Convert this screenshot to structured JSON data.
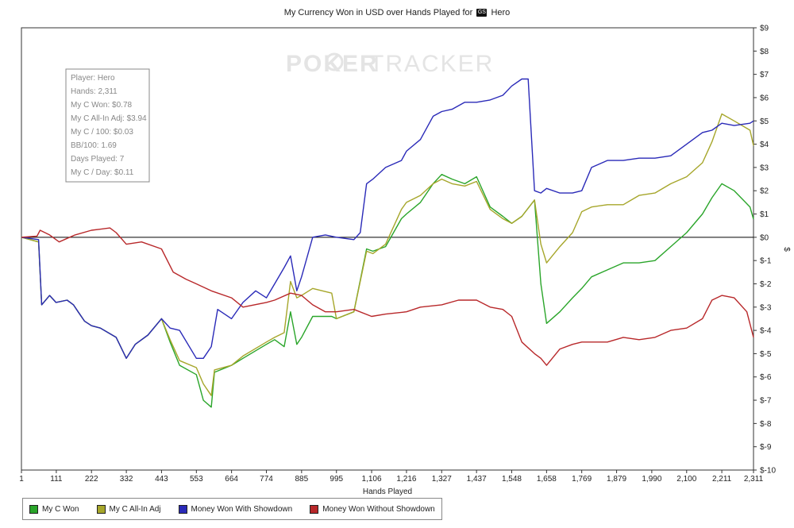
{
  "title": "My Currency Won in USD over Hands Played for",
  "title_player": "Hero",
  "hero_icon_text": "GS",
  "watermark": {
    "left": "POKER",
    "right": "TRACKER"
  },
  "stats_box": [
    "Player: Hero",
    "Hands: 2,311",
    "My C Won: $0.78",
    "My C All-In Adj: $3.94",
    "My C / 100: $0.03",
    "BB/100: 1.69",
    "Days Played: 7",
    "My C / Day: $0.11"
  ],
  "chart_data": {
    "type": "line",
    "title": "My Currency Won in USD over Hands Played for Hero",
    "xlabel": "Hands Played",
    "ylabel": "$",
    "xlim": [
      1,
      2311
    ],
    "ylim": [
      -10,
      9
    ],
    "x_ticks": [
      1,
      111,
      222,
      332,
      443,
      553,
      664,
      774,
      885,
      995,
      1106,
      1216,
      1327,
      1437,
      1548,
      1658,
      1769,
      1879,
      1990,
      2100,
      2211,
      2311
    ],
    "x_tick_labels": [
      "1",
      "111",
      "222",
      "332",
      "443",
      "553",
      "664",
      "774",
      "885",
      "995",
      "1,106",
      "1,216",
      "1,327",
      "1,437",
      "1,548",
      "1,658",
      "1,769",
      "1,879",
      "1,990",
      "2,100",
      "2,211",
      "2,311"
    ],
    "y_ticks": [
      9,
      8,
      7,
      6,
      5,
      4,
      3,
      2,
      1,
      0,
      -1,
      -2,
      -3,
      -4,
      -5,
      -6,
      -7,
      -8,
      -9,
      -10
    ],
    "y_tick_labels": [
      "$9",
      "$8",
      "$7",
      "$6",
      "$5",
      "$4",
      "$3",
      "$2",
      "$1",
      "$0",
      "$-1",
      "$-2",
      "$-3",
      "$-4",
      "$-5",
      "$-6",
      "$-7",
      "$-8",
      "$-9",
      "$-10"
    ],
    "legend_position": "bottom-left",
    "grid": false,
    "series": [
      {
        "name": "My C Won",
        "color": "#2aa52a",
        "x": [
          1,
          55,
          65,
          90,
          110,
          145,
          165,
          180,
          200,
          222,
          250,
          300,
          332,
          360,
          400,
          443,
          470,
          500,
          553,
          575,
          600,
          610,
          664,
          700,
          774,
          800,
          830,
          850,
          870,
          885,
          920,
          980,
          995,
          1050,
          1090,
          1110,
          1150,
          1200,
          1216,
          1260,
          1300,
          1327,
          1360,
          1400,
          1437,
          1480,
          1520,
          1548,
          1580,
          1620,
          1640,
          1658,
          1700,
          1740,
          1769,
          1800,
          1850,
          1900,
          1950,
          2000,
          2050,
          2100,
          2150,
          2180,
          2211,
          2250,
          2300,
          2311
        ],
        "y": [
          0,
          -0.2,
          -2.9,
          -2.5,
          -2.8,
          -2.7,
          -2.9,
          -3.2,
          -3.6,
          -3.8,
          -3.9,
          -4.3,
          -5.2,
          -4.6,
          -4.2,
          -3.5,
          -4.5,
          -5.5,
          -5.9,
          -7,
          -7.3,
          -5.8,
          -5.5,
          -5.2,
          -4.6,
          -4.4,
          -4.7,
          -3.2,
          -4.6,
          -4.3,
          -3.4,
          -3.4,
          -3.5,
          -3.2,
          -0.5,
          -0.6,
          -0.4,
          0.8,
          1.0,
          1.5,
          2.3,
          2.7,
          2.5,
          2.3,
          2.6,
          1.3,
          0.9,
          0.6,
          0.9,
          1.6,
          -2,
          -3.7,
          -3.2,
          -2.6,
          -2.2,
          -1.7,
          -1.4,
          -1.1,
          -1.1,
          -1.0,
          -0.4,
          0.2,
          1.0,
          1.7,
          2.3,
          2.0,
          1.3,
          0.78
        ]
      },
      {
        "name": "My C All-In Adj",
        "color": "#a6a62a",
        "x": [
          1,
          55,
          65,
          90,
          110,
          145,
          165,
          180,
          200,
          222,
          250,
          300,
          332,
          360,
          400,
          443,
          470,
          500,
          553,
          575,
          600,
          610,
          664,
          700,
          774,
          800,
          830,
          850,
          870,
          885,
          920,
          980,
          995,
          1050,
          1090,
          1110,
          1150,
          1200,
          1216,
          1260,
          1300,
          1327,
          1360,
          1400,
          1437,
          1480,
          1520,
          1548,
          1580,
          1620,
          1640,
          1658,
          1700,
          1740,
          1769,
          1800,
          1850,
          1900,
          1950,
          2000,
          2050,
          2100,
          2150,
          2180,
          2211,
          2250,
          2300,
          2311
        ],
        "y": [
          0,
          -0.2,
          -2.9,
          -2.5,
          -2.8,
          -2.7,
          -2.9,
          -3.2,
          -3.6,
          -3.8,
          -3.9,
          -4.3,
          -5.2,
          -4.6,
          -4.2,
          -3.5,
          -4.4,
          -5.3,
          -5.6,
          -6.3,
          -6.8,
          -5.7,
          -5.5,
          -5.1,
          -4.5,
          -4.3,
          -4.1,
          -1.9,
          -2.6,
          -2.5,
          -2.2,
          -2.4,
          -3.5,
          -3.2,
          -0.6,
          -0.7,
          -0.3,
          1.2,
          1.5,
          1.8,
          2.3,
          2.5,
          2.3,
          2.2,
          2.4,
          1.2,
          0.8,
          0.6,
          0.9,
          1.6,
          -0.3,
          -1.1,
          -0.4,
          0.2,
          1.1,
          1.3,
          1.4,
          1.4,
          1.8,
          1.9,
          2.3,
          2.6,
          3.2,
          4.1,
          5.3,
          5.0,
          4.6,
          3.94
        ]
      },
      {
        "name": "Money Won With Showdown",
        "color": "#2a2ab8",
        "x": [
          1,
          55,
          65,
          90,
          110,
          145,
          165,
          180,
          200,
          222,
          250,
          300,
          332,
          360,
          400,
          443,
          470,
          500,
          553,
          575,
          600,
          620,
          664,
          700,
          740,
          774,
          800,
          830,
          850,
          870,
          885,
          920,
          960,
          995,
          1050,
          1070,
          1090,
          1110,
          1150,
          1200,
          1216,
          1260,
          1300,
          1327,
          1360,
          1400,
          1437,
          1480,
          1520,
          1548,
          1580,
          1600,
          1620,
          1640,
          1658,
          1700,
          1740,
          1769,
          1800,
          1850,
          1900,
          1950,
          2000,
          2050,
          2100,
          2150,
          2180,
          2211,
          2250,
          2300,
          2311
        ],
        "y": [
          0,
          -0.1,
          -2.9,
          -2.5,
          -2.8,
          -2.7,
          -2.9,
          -3.2,
          -3.6,
          -3.8,
          -3.9,
          -4.3,
          -5.2,
          -4.6,
          -4.2,
          -3.5,
          -3.9,
          -4,
          -5.2,
          -5.2,
          -4.7,
          -3.1,
          -3.5,
          -2.8,
          -2.3,
          -2.6,
          -2.0,
          -1.3,
          -0.8,
          -2.3,
          -1.7,
          0.0,
          0.1,
          0.0,
          -0.1,
          0.2,
          2.3,
          2.5,
          3.0,
          3.3,
          3.7,
          4.2,
          5.2,
          5.4,
          5.5,
          5.8,
          5.8,
          5.9,
          6.1,
          6.5,
          6.8,
          6.8,
          2.0,
          1.9,
          2.1,
          1.9,
          1.9,
          2.0,
          3.0,
          3.3,
          3.3,
          3.4,
          3.4,
          3.5,
          4.0,
          4.5,
          4.6,
          4.9,
          4.8,
          4.9,
          5.0
        ]
      },
      {
        "name": "Money Won Without Showdown",
        "color": "#b8282a",
        "x": [
          1,
          50,
          60,
          90,
          120,
          170,
          222,
          280,
          300,
          332,
          380,
          443,
          480,
          520,
          553,
          600,
          664,
          700,
          774,
          800,
          850,
          885,
          920,
          960,
          995,
          1050,
          1106,
          1150,
          1216,
          1260,
          1327,
          1380,
          1437,
          1480,
          1520,
          1548,
          1580,
          1620,
          1640,
          1658,
          1700,
          1740,
          1769,
          1800,
          1850,
          1900,
          1950,
          2000,
          2050,
          2100,
          2150,
          2180,
          2211,
          2250,
          2290,
          2311
        ],
        "y": [
          0,
          0.05,
          0.3,
          0.1,
          -0.2,
          0.1,
          0.3,
          0.4,
          0.2,
          -0.3,
          -0.2,
          -0.5,
          -1.5,
          -1.8,
          -2.0,
          -2.3,
          -2.6,
          -3.0,
          -2.8,
          -2.7,
          -2.4,
          -2.5,
          -2.9,
          -3.2,
          -3.2,
          -3.1,
          -3.4,
          -3.3,
          -3.2,
          -3.0,
          -2.9,
          -2.7,
          -2.7,
          -3.0,
          -3.1,
          -3.4,
          -4.5,
          -5.0,
          -5.2,
          -5.5,
          -4.8,
          -4.6,
          -4.5,
          -4.5,
          -4.5,
          -4.3,
          -4.4,
          -4.3,
          -4.0,
          -3.9,
          -3.5,
          -2.7,
          -2.5,
          -2.6,
          -3.2,
          -4.3
        ]
      }
    ]
  }
}
